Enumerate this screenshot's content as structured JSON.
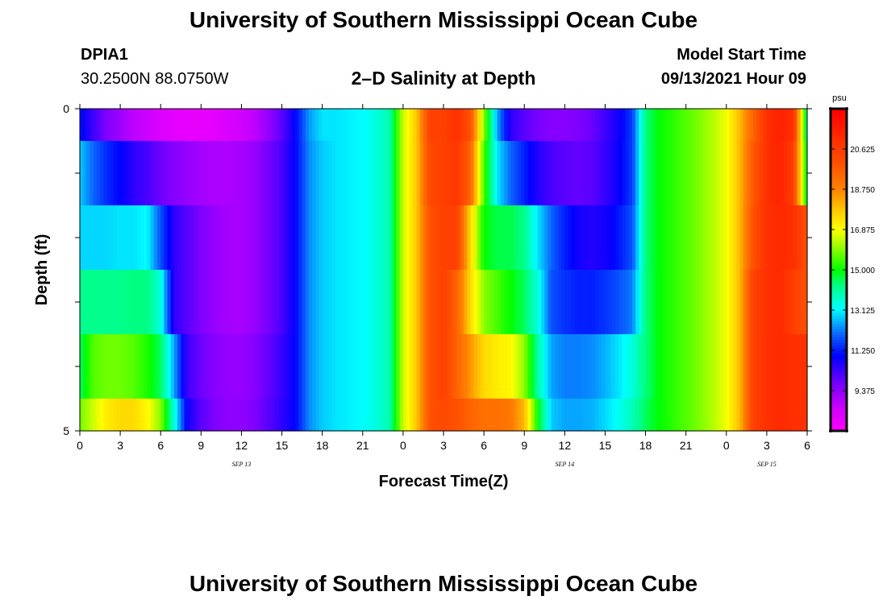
{
  "header": {
    "title": "University of Southern Mississippi Ocean Cube",
    "station_id": "DPIA1",
    "station_coords": "30.2500N  88.0750W",
    "chart_title": "2–D Salinity at Depth",
    "model_start_label": "Model Start Time",
    "model_start_value": "09/13/2021 Hour 09"
  },
  "footer": {
    "title": "University of Southern Mississippi Ocean Cube"
  },
  "chart_data": {
    "type": "heatmap",
    "title": "2–D Salinity at Depth",
    "xlabel": "Forecast Time(Z)",
    "ylabel": "Depth (ft)",
    "x_ticks": [
      "0",
      "3",
      "6",
      "9",
      "12",
      "15",
      "18",
      "21",
      "0",
      "3",
      "6",
      "9",
      "12",
      "15",
      "18",
      "21",
      "0",
      "3",
      "6"
    ],
    "x_tick_hours": [
      0,
      3,
      6,
      9,
      12,
      15,
      18,
      21,
      24,
      27,
      30,
      33,
      36,
      39,
      42,
      45,
      48,
      51,
      54
    ],
    "date_labels": [
      {
        "label": "SEP 13",
        "hour": 12
      },
      {
        "label": "SEP 14",
        "hour": 36
      },
      {
        "label": "SEP 15",
        "hour": 51
      }
    ],
    "y_ticks": [
      "0",
      "5"
    ],
    "ylim": [
      0,
      5
    ],
    "xlim": [
      0,
      54
    ],
    "depths": [
      0.25,
      1.0,
      2.0,
      3.0,
      4.0,
      4.75
    ],
    "depth_bounds": [
      0,
      0.5,
      1.5,
      2.5,
      3.5,
      4.5,
      5
    ],
    "time_hours": [
      0,
      1,
      2,
      3,
      4,
      5,
      6,
      7,
      8,
      9,
      10,
      11,
      12,
      13,
      14,
      15,
      16,
      17,
      18,
      19,
      20,
      21,
      22,
      23,
      24,
      25,
      26,
      27,
      28,
      29,
      30,
      31,
      32,
      33,
      34,
      35,
      36,
      37,
      38,
      39,
      40,
      41,
      42,
      43,
      44,
      45,
      46,
      47,
      48,
      49,
      50,
      51,
      52,
      53,
      54
    ],
    "salinity": [
      [
        11.2,
        10.3,
        9.6,
        9.2,
        8.8,
        8.6,
        8.3,
        8.1,
        8.0,
        8.0,
        8.1,
        8.3,
        8.5,
        8.8,
        9.3,
        10.0,
        11.0,
        12.4,
        13.0,
        13.0,
        13.1,
        13.2,
        13.5,
        13.9,
        16.5,
        17.8,
        20.5,
        20.5,
        21.0,
        20.0,
        16.0,
        12.5,
        10.5,
        10.0,
        9.7,
        9.5,
        9.5,
        9.6,
        9.8,
        10.3,
        10.8,
        11.6,
        14.3,
        15.0,
        15.3,
        15.6,
        15.9,
        16.3,
        16.8,
        18.0,
        19.5,
        21.0,
        21.5,
        21.0,
        14.0
      ],
      [
        12.8,
        12.0,
        11.4,
        11.0,
        10.5,
        10.2,
        9.8,
        9.5,
        9.3,
        9.1,
        9.0,
        9.0,
        9.1,
        9.3,
        9.7,
        10.2,
        11.0,
        12.3,
        12.8,
        13.0,
        13.1,
        13.2,
        13.5,
        13.9,
        16.5,
        17.8,
        20.3,
        20.5,
        20.8,
        19.5,
        15.5,
        13.0,
        12.0,
        11.3,
        10.6,
        10.2,
        10.0,
        9.9,
        10.0,
        10.4,
        10.9,
        11.6,
        14.3,
        15.0,
        15.3,
        15.6,
        15.9,
        16.3,
        16.8,
        18.0,
        19.8,
        21.0,
        21.4,
        20.5,
        14.5
      ],
      [
        12.9,
        12.9,
        12.9,
        13.0,
        13.0,
        13.2,
        11.8,
        10.5,
        10.0,
        9.6,
        9.3,
        9.1,
        9.1,
        9.3,
        9.7,
        10.2,
        11.0,
        12.3,
        12.8,
        13.0,
        13.1,
        13.2,
        13.5,
        13.9,
        16.5,
        17.8,
        20.0,
        20.5,
        20.5,
        17.5,
        15.0,
        14.6,
        14.6,
        14.2,
        13.0,
        12.0,
        11.3,
        10.8,
        10.6,
        10.8,
        11.2,
        11.8,
        14.3,
        15.0,
        15.3,
        15.6,
        15.9,
        16.3,
        16.8,
        18.0,
        20.0,
        21.0,
        21.2,
        21.0,
        20.0
      ],
      [
        14.2,
        14.2,
        14.2,
        14.2,
        14.3,
        14.3,
        13.5,
        10.5,
        10.0,
        9.6,
        9.3,
        9.1,
        9.1,
        9.3,
        9.7,
        10.2,
        11.0,
        12.3,
        12.8,
        13.0,
        13.1,
        13.2,
        13.5,
        13.9,
        16.5,
        17.8,
        20.0,
        20.5,
        19.5,
        17.5,
        16.0,
        15.5,
        15.0,
        14.5,
        13.5,
        11.8,
        11.5,
        11.3,
        11.3,
        11.5,
        11.8,
        12.2,
        14.3,
        15.0,
        15.3,
        15.6,
        15.9,
        16.3,
        16.8,
        18.0,
        20.5,
        21.0,
        21.2,
        20.5,
        20.0
      ],
      [
        14.5,
        15.6,
        15.8,
        15.8,
        15.6,
        15.2,
        14.5,
        12.5,
        10.3,
        9.8,
        9.5,
        9.3,
        9.3,
        9.5,
        9.9,
        10.4,
        11.0,
        12.3,
        12.8,
        13.0,
        13.1,
        13.2,
        13.5,
        13.9,
        16.5,
        17.8,
        20.0,
        20.5,
        19.5,
        18.5,
        17.5,
        17.2,
        17.0,
        16.0,
        14.0,
        12.5,
        12.2,
        12.2,
        12.3,
        12.6,
        13.0,
        13.5,
        14.3,
        15.0,
        15.3,
        15.6,
        15.9,
        16.3,
        16.8,
        18.0,
        20.5,
        21.0,
        21.2,
        21.0,
        21.0
      ],
      [
        15.8,
        16.5,
        17.2,
        17.5,
        17.5,
        17.0,
        16.0,
        13.5,
        10.8,
        10.0,
        9.6,
        9.4,
        9.4,
        9.6,
        10.0,
        10.5,
        11.0,
        12.3,
        12.8,
        13.0,
        13.1,
        13.2,
        13.5,
        13.9,
        16.5,
        17.8,
        20.0,
        20.2,
        20.0,
        19.5,
        19.2,
        19.2,
        19.0,
        18.0,
        15.0,
        12.8,
        12.5,
        12.5,
        12.6,
        12.9,
        13.3,
        13.8,
        14.5,
        15.0,
        15.3,
        15.6,
        15.9,
        16.3,
        16.8,
        18.0,
        20.5,
        21.0,
        21.2,
        21.0,
        21.0
      ]
    ],
    "colorbar": {
      "unit": "psu",
      "min": 7.5,
      "max": 22.5,
      "tick_values": [
        9.375,
        11.25,
        13.125,
        15.0,
        16.875,
        18.75,
        20.625
      ],
      "tick_labels": [
        "9.375",
        "11.250",
        "13.125",
        "15.000",
        "16.875",
        "18.750",
        "20.625"
      ],
      "color_stops": [
        {
          "value": 7.5,
          "color": "#ff00ff"
        },
        {
          "value": 8.6,
          "color": "#cc00ff"
        },
        {
          "value": 9.6,
          "color": "#7f00ff"
        },
        {
          "value": 11.0,
          "color": "#0000ff"
        },
        {
          "value": 12.0,
          "color": "#0a64ff"
        },
        {
          "value": 13.2,
          "color": "#00ffff"
        },
        {
          "value": 14.3,
          "color": "#00ff80"
        },
        {
          "value": 15.0,
          "color": "#00ff00"
        },
        {
          "value": 16.3,
          "color": "#b4ff00"
        },
        {
          "value": 16.9,
          "color": "#ffff00"
        },
        {
          "value": 17.8,
          "color": "#ffc800"
        },
        {
          "value": 18.8,
          "color": "#ff8000"
        },
        {
          "value": 20.0,
          "color": "#ff5000"
        },
        {
          "value": 22.5,
          "color": "#ff0000"
        }
      ]
    },
    "frame_color": "#000000",
    "background": "#ffffff"
  }
}
